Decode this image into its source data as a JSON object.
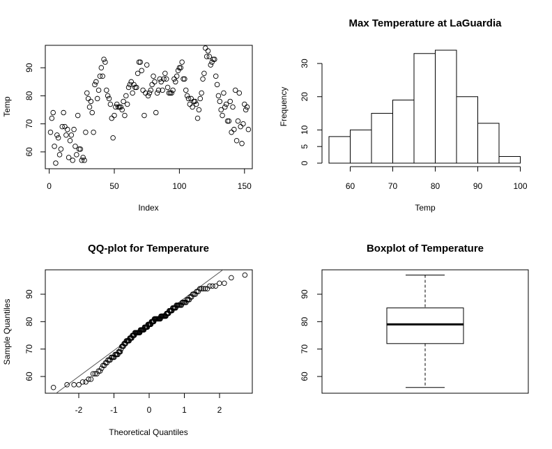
{
  "chart_data": [
    {
      "type": "scatter",
      "title": "",
      "xlabel": "Index",
      "ylabel": "Temp",
      "xlim": [
        -3,
        156
      ],
      "ylim": [
        54,
        98
      ],
      "xticks": [
        "0",
        "50",
        "100",
        "150"
      ],
      "yticks": [
        "60",
        "70",
        "80",
        "90"
      ],
      "y": [
        67,
        72,
        74,
        62,
        56,
        66,
        65,
        59,
        61,
        69,
        74,
        69,
        66,
        68,
        58,
        64,
        66,
        57,
        68,
        62,
        59,
        73,
        61,
        61,
        57,
        58,
        57,
        67,
        81,
        79,
        76,
        78,
        74,
        67,
        84,
        85,
        79,
        82,
        87,
        90,
        87,
        93,
        92,
        82,
        80,
        79,
        77,
        72,
        65,
        73,
        76,
        77,
        76,
        76,
        76,
        75,
        78,
        73,
        80,
        77,
        83,
        84,
        85,
        81,
        84,
        83,
        83,
        88,
        92,
        92,
        89,
        82,
        73,
        81,
        91,
        80,
        81,
        82,
        84,
        87,
        85,
        74,
        81,
        82,
        86,
        85,
        82,
        86,
        88,
        86,
        83,
        81,
        81,
        81,
        82,
        86,
        85,
        87,
        89,
        90,
        90,
        92,
        86,
        86,
        82,
        80,
        79,
        77,
        79,
        76,
        78,
        78,
        77,
        72,
        75,
        79,
        81,
        86,
        88,
        97,
        94,
        96,
        94,
        91,
        92,
        93,
        93,
        87,
        84,
        80,
        78,
        75,
        73,
        81,
        76,
        77,
        71,
        71,
        78,
        67,
        76,
        68,
        82,
        64,
        71,
        81,
        69,
        63,
        70,
        77,
        75,
        76,
        68
      ]
    },
    {
      "type": "bar",
      "title": "Max Temperature at LaGuardia",
      "xlabel": "Temp",
      "ylabel": "Frequency",
      "bin_edges": [
        55,
        60,
        65,
        70,
        75,
        80,
        85,
        90,
        95,
        100
      ],
      "values": [
        8,
        10,
        15,
        19,
        33,
        34,
        20,
        12,
        2
      ],
      "xticks": [
        "60",
        "70",
        "80",
        "90",
        "100"
      ],
      "yticks": [
        "0",
        "5",
        "10",
        "20",
        "30"
      ],
      "ylim": [
        0,
        35
      ]
    },
    {
      "type": "scatter",
      "title": "QQ-plot for Temperature",
      "xlabel": "Theoretical Quantiles",
      "ylabel": "Sample Quantiles",
      "xlim": [
        -2.9,
        2.9
      ],
      "ylim": [
        54,
        98
      ],
      "xticks": [
        "-2",
        "-1",
        "0",
        "1",
        "2"
      ],
      "yticks": [
        "60",
        "70",
        "80",
        "90"
      ],
      "reference_line": {
        "intercept": 79,
        "slope": 9.5
      }
    },
    {
      "type": "box",
      "title": "Boxplot of Temperature",
      "ylim": [
        54,
        98
      ],
      "yticks": [
        "60",
        "70",
        "80",
        "90"
      ],
      "min": 56,
      "q1": 72,
      "median": 79,
      "q3": 85,
      "max": 97
    }
  ]
}
